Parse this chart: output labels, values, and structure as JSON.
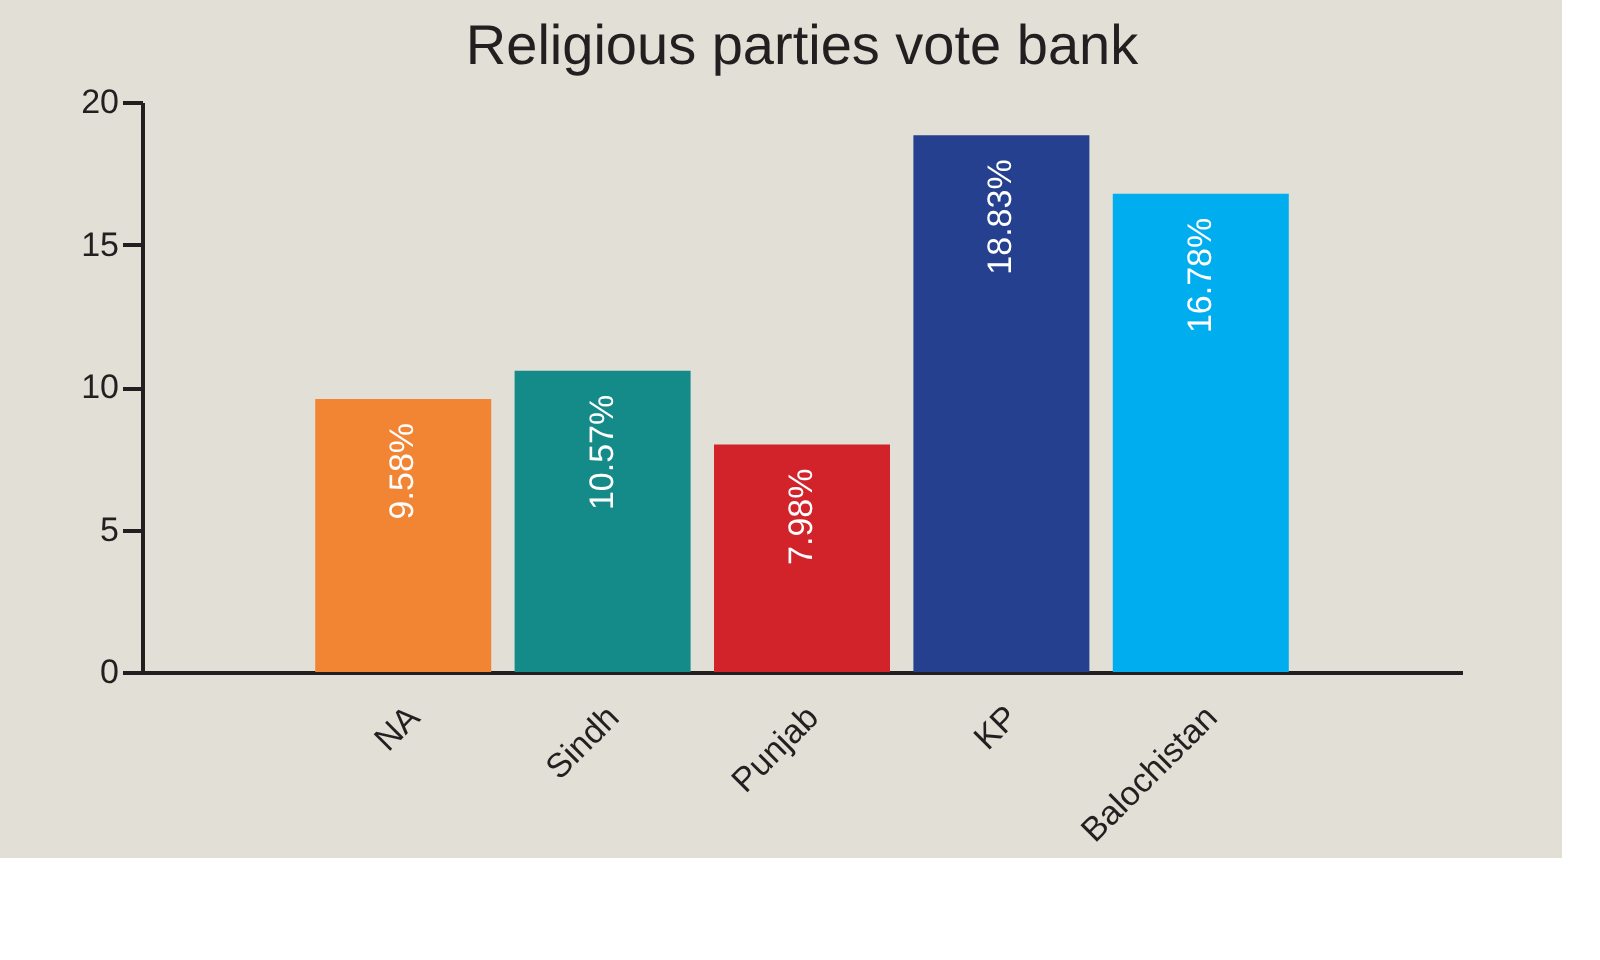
{
  "chart_data": {
    "type": "bar",
    "title": "Religious parties vote bank",
    "categories": [
      "NA",
      "Sindh",
      "Punjab",
      "KP",
      "Balochistan"
    ],
    "values": [
      9.58,
      10.57,
      7.98,
      18.83,
      16.78
    ],
    "colors": [
      "#f28533",
      "#148b89",
      "#d2232a",
      "#24408e",
      "#00aeef"
    ],
    "value_labels": [
      "9.58%",
      "10.57%",
      "7.98%",
      "18.83%",
      "16.78%"
    ],
    "ylim": [
      0,
      20
    ],
    "yticks": [
      0,
      5,
      10,
      15,
      20
    ],
    "grid": false
  }
}
